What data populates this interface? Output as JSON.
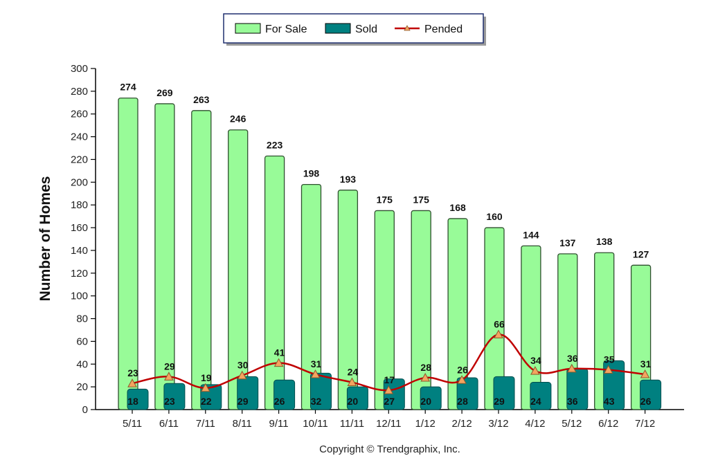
{
  "chart_data": {
    "type": "bar",
    "categories": [
      "5/11",
      "6/11",
      "7/11",
      "8/11",
      "9/11",
      "10/11",
      "11/11",
      "12/11",
      "1/12",
      "2/12",
      "3/12",
      "4/12",
      "5/12",
      "6/12",
      "7/12"
    ],
    "series": [
      {
        "name": "For Sale",
        "type": "bar",
        "color": "#98fb98",
        "values": [
          274,
          269,
          263,
          246,
          223,
          198,
          193,
          175,
          175,
          168,
          160,
          144,
          137,
          138,
          127
        ]
      },
      {
        "name": "Sold",
        "type": "bar",
        "color": "#008080",
        "values": [
          18,
          23,
          22,
          29,
          26,
          32,
          20,
          27,
          20,
          28,
          29,
          24,
          36,
          43,
          26
        ]
      },
      {
        "name": "Pended",
        "type": "line",
        "color": "#c00000",
        "marker_color": "#f4a460",
        "values": [
          23,
          29,
          19,
          30,
          41,
          31,
          24,
          17,
          28,
          26,
          66,
          34,
          36,
          35,
          31
        ]
      }
    ],
    "xlabel": "",
    "ylabel": "Number of Homes",
    "ylim": [
      0,
      300
    ],
    "yticks": [
      0,
      20,
      40,
      60,
      80,
      100,
      120,
      140,
      160,
      180,
      200,
      220,
      240,
      260,
      280,
      300
    ],
    "legend": "top-center",
    "grid": false
  },
  "footer": "Copyright © Trendgraphix, Inc."
}
